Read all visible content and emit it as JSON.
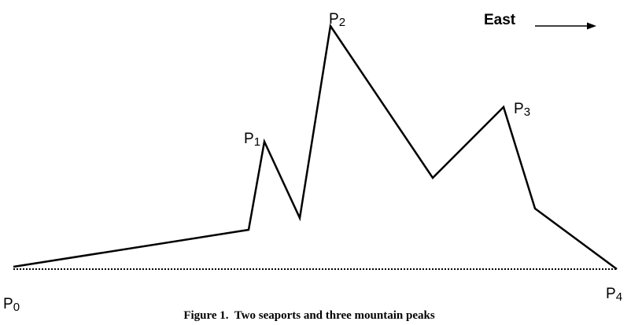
{
  "direction": {
    "label": "East"
  },
  "points": [
    {
      "id": "P0",
      "letter": "P",
      "sub": "0"
    },
    {
      "id": "P1",
      "letter": "P",
      "sub": "1"
    },
    {
      "id": "P2",
      "letter": "P",
      "sub": "2"
    },
    {
      "id": "P3",
      "letter": "P",
      "sub": "3"
    },
    {
      "id": "P4",
      "letter": "P",
      "sub": "4"
    }
  ],
  "caption": "Figure 1.  Two seaports and three mountain peaks",
  "colors": {
    "line": "#000000",
    "background": "#ffffff"
  }
}
